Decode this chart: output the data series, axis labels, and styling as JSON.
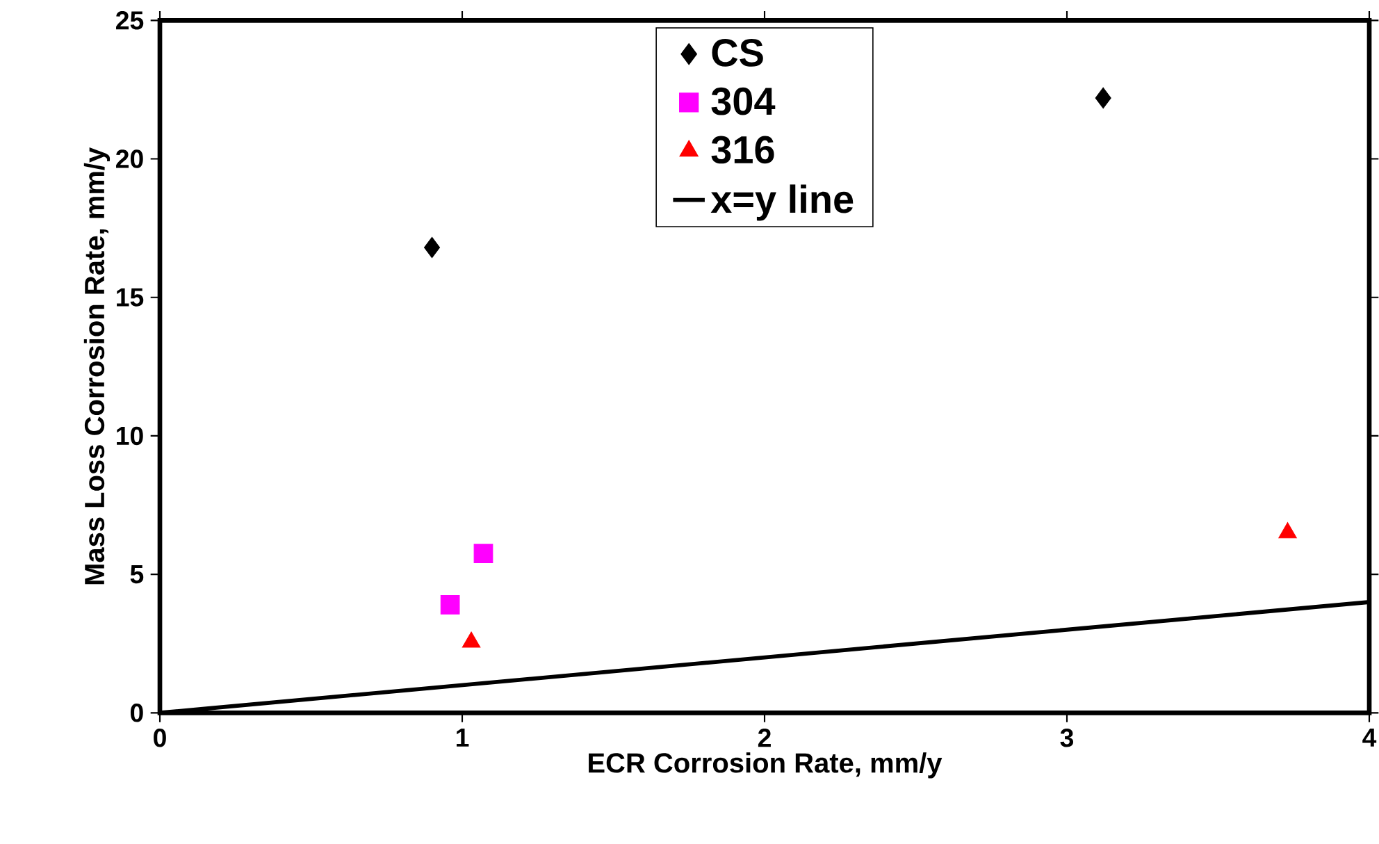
{
  "chart_data": {
    "type": "scatter",
    "xlabel": "ECR Corrosion Rate, mm/y",
    "ylabel": "Mass Loss Corrosion Rate, mm/y",
    "xlim": [
      0,
      4
    ],
    "ylim": [
      0,
      25
    ],
    "xticks": [
      0,
      1,
      2,
      3,
      4
    ],
    "yticks": [
      0,
      5,
      10,
      15,
      20,
      25
    ],
    "legend": "top",
    "grid": false,
    "series": [
      {
        "name": "CS",
        "color": "#000000",
        "marker": "diamond",
        "x": [
          0.9,
          3.12
        ],
        "values": [
          16.8,
          22.2
        ]
      },
      {
        "name": "304",
        "color": "#ff00ff",
        "marker": "square",
        "x": [
          0.96,
          1.07
        ],
        "values": [
          3.9,
          5.75
        ]
      },
      {
        "name": "316",
        "color": "#ff0000",
        "marker": "triangle",
        "x": [
          1.03,
          3.73
        ],
        "values": [
          2.55,
          6.5
        ]
      },
      {
        "name": "x=y line",
        "type": "line",
        "color": "#000000",
        "marker": "none",
        "line_style": "solid",
        "x": [
          0,
          4
        ],
        "values": [
          0,
          4
        ]
      }
    ]
  }
}
